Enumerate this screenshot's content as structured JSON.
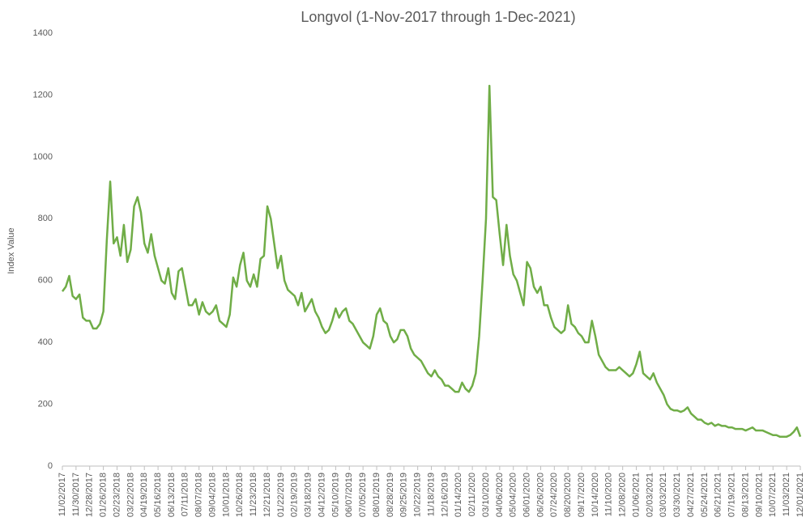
{
  "chart_data": {
    "type": "line",
    "title": "Longvol (1-Nov-2017 through 1-Dec-2021)",
    "y_label": "Index Value",
    "color": "#70ad47",
    "grid": false,
    "ylim": [
      0,
      1400
    ],
    "yticks": [
      0,
      200,
      400,
      600,
      800,
      1000,
      1200,
      1400
    ],
    "categories": [
      "11/02/2017",
      null,
      null,
      null,
      "11/30/2017",
      null,
      null,
      null,
      "12/28/2017",
      null,
      null,
      null,
      "01/26/2018",
      null,
      null,
      null,
      "02/23/2018",
      null,
      null,
      null,
      "03/22/2018",
      null,
      null,
      null,
      "04/19/2018",
      null,
      null,
      null,
      "05/16/2018",
      null,
      null,
      null,
      "06/13/2018",
      null,
      null,
      null,
      "07/11/2018",
      null,
      null,
      null,
      "08/07/2018",
      null,
      null,
      null,
      "09/04/2018",
      null,
      null,
      null,
      "10/01/2018",
      null,
      null,
      null,
      "10/26/2018",
      null,
      null,
      null,
      "11/23/2018",
      null,
      null,
      null,
      "12/21/2018",
      null,
      null,
      null,
      "01/22/2019",
      null,
      null,
      null,
      "02/19/2019",
      null,
      null,
      null,
      "03/18/2019",
      null,
      null,
      null,
      "04/12/2019",
      null,
      null,
      null,
      "05/10/2019",
      null,
      null,
      null,
      "06/07/2019",
      null,
      null,
      null,
      "07/05/2019",
      null,
      null,
      null,
      "08/01/2019",
      null,
      null,
      null,
      "08/28/2019",
      null,
      null,
      null,
      "09/25/2019",
      null,
      null,
      null,
      "10/22/2019",
      null,
      null,
      null,
      "11/18/2019",
      null,
      null,
      null,
      "12/16/2019",
      null,
      null,
      null,
      "01/14/2020",
      null,
      null,
      null,
      "02/11/2020",
      null,
      null,
      null,
      "03/10/2020",
      null,
      null,
      null,
      "04/06/2020",
      null,
      null,
      null,
      "05/04/2020",
      null,
      null,
      null,
      "06/01/2020",
      null,
      null,
      null,
      "06/26/2020",
      null,
      null,
      null,
      "07/24/2020",
      null,
      null,
      null,
      "08/20/2020",
      null,
      null,
      null,
      "09/17/2020",
      null,
      null,
      null,
      "10/14/2020",
      null,
      null,
      null,
      "11/10/2020",
      null,
      null,
      null,
      "12/08/2020",
      null,
      null,
      null,
      "01/06/2021",
      null,
      null,
      null,
      "02/03/2021",
      null,
      null,
      null,
      "03/03/2021",
      null,
      null,
      null,
      "03/30/2021",
      null,
      null,
      null,
      "04/27/2021",
      null,
      null,
      null,
      "05/24/2021",
      null,
      null,
      null,
      "06/21/2021",
      null,
      null,
      null,
      "07/19/2021",
      null,
      null,
      null,
      "08/13/2021",
      null,
      null,
      null,
      "09/10/2021",
      null,
      null,
      null,
      "10/07/2021",
      null,
      null,
      null,
      "11/03/2021",
      null,
      null,
      null,
      "12/01/2021"
    ],
    "values": [
      565,
      580,
      615,
      550,
      540,
      555,
      480,
      470,
      470,
      445,
      445,
      460,
      500,
      730,
      920,
      720,
      740,
      680,
      780,
      660,
      700,
      840,
      870,
      820,
      720,
      690,
      750,
      680,
      640,
      600,
      590,
      640,
      560,
      540,
      630,
      640,
      580,
      520,
      520,
      540,
      490,
      530,
      500,
      490,
      500,
      520,
      470,
      460,
      450,
      490,
      610,
      580,
      650,
      690,
      600,
      580,
      620,
      580,
      670,
      680,
      840,
      800,
      720,
      640,
      680,
      600,
      570,
      560,
      550,
      520,
      560,
      500,
      520,
      540,
      500,
      480,
      450,
      430,
      440,
      470,
      510,
      480,
      500,
      510,
      470,
      460,
      440,
      420,
      400,
      390,
      380,
      420,
      490,
      510,
      470,
      460,
      420,
      400,
      410,
      440,
      440,
      420,
      380,
      360,
      350,
      340,
      320,
      300,
      290,
      310,
      290,
      280,
      260,
      260,
      250,
      240,
      240,
      270,
      250,
      240,
      260,
      300,
      420,
      600,
      800,
      1230,
      870,
      860,
      750,
      650,
      780,
      680,
      620,
      600,
      560,
      520,
      660,
      640,
      580,
      560,
      580,
      520,
      520,
      480,
      450,
      440,
      430,
      440,
      520,
      460,
      450,
      430,
      420,
      400,
      400,
      470,
      420,
      360,
      340,
      320,
      310,
      310,
      310,
      320,
      310,
      300,
      290,
      300,
      330,
      370,
      300,
      290,
      280,
      300,
      270,
      250,
      230,
      200,
      185,
      180,
      180,
      175,
      180,
      190,
      170,
      160,
      150,
      150,
      140,
      135,
      140,
      130,
      135,
      130,
      130,
      125,
      125,
      120,
      120,
      120,
      115,
      120,
      125,
      115,
      115,
      115,
      110,
      105,
      100,
      100,
      95,
      95,
      95,
      100,
      110,
      125,
      95
    ]
  }
}
